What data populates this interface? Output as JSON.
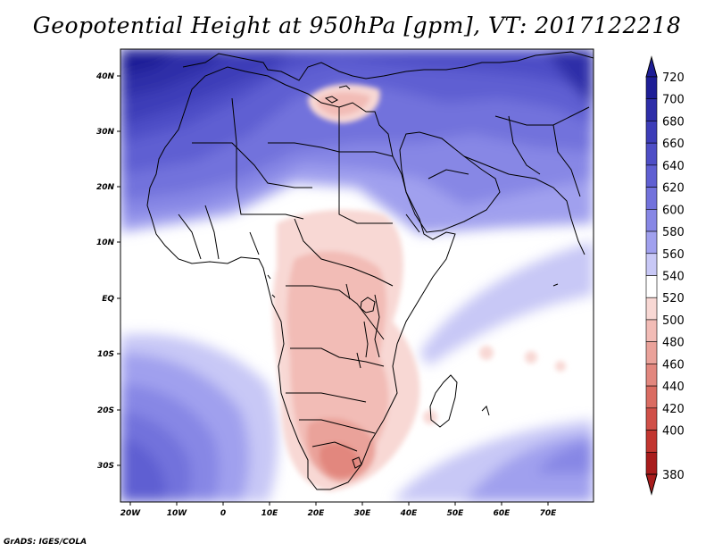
{
  "title": "Geopotential Height at 950hPa [gpm], VT: 2017122218",
  "footer": "GrADS: IGES/COLA",
  "lat_labels": [
    "40N",
    "30N",
    "20N",
    "10N",
    "EQ",
    "10S",
    "20S",
    "30S"
  ],
  "lon_labels": [
    "20W",
    "10W",
    "0",
    "10E",
    "20E",
    "30E",
    "40E",
    "50E",
    "60E",
    "70E"
  ],
  "colorbar": {
    "levels": [
      "720",
      "700",
      "680",
      "660",
      "640",
      "620",
      "600",
      "580",
      "560",
      "540",
      "520",
      "500",
      "480",
      "460",
      "440",
      "420",
      "400",
      "380"
    ],
    "colors": [
      "#1e1e96",
      "#2e2ea8",
      "#3d3db8",
      "#4e4ec6",
      "#5f5fd2",
      "#7272dc",
      "#8787e5",
      "#a0a0ee",
      "#c8c8f6",
      "#ffffff",
      "#f8d8d4",
      "#f2bcb6",
      "#eaa29a",
      "#e2877e",
      "#da6c62",
      "#d05048",
      "#c23630",
      "#a81c1c"
    ]
  },
  "map": {
    "ocean_color": "#ffffff",
    "continent_outline_color": "#000000"
  }
}
